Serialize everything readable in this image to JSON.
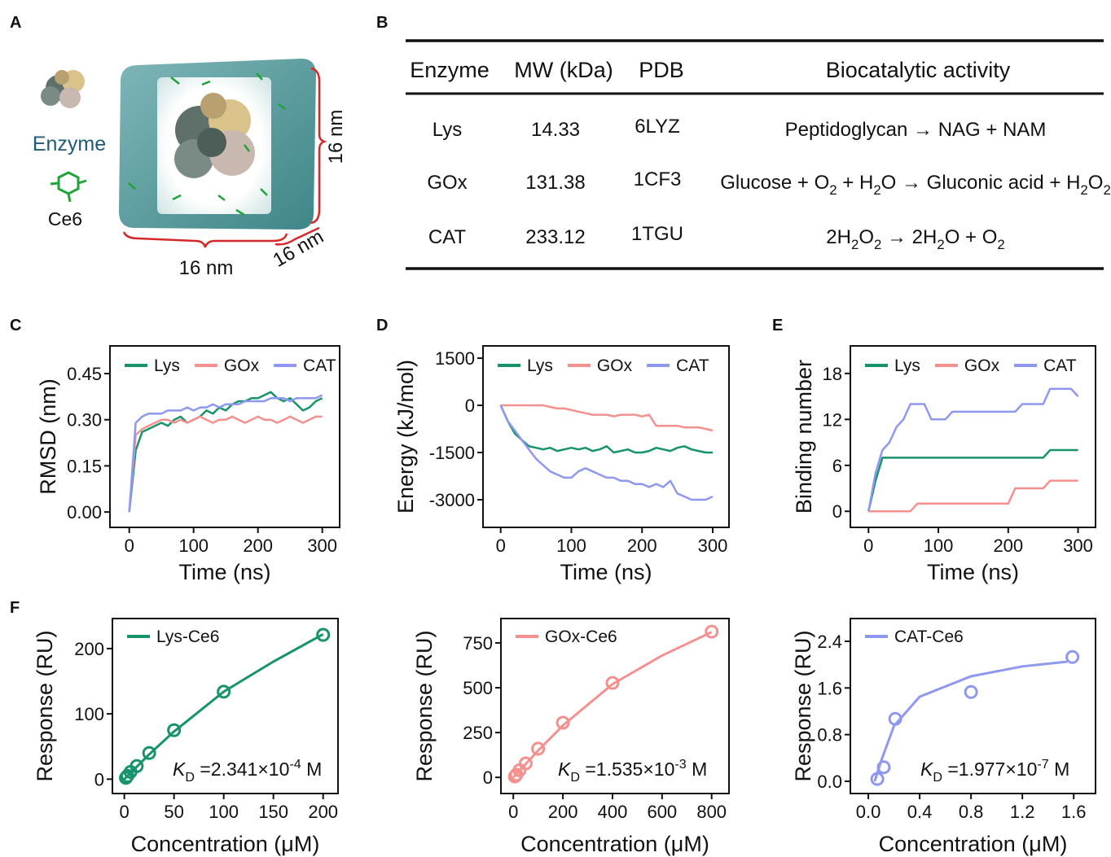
{
  "panel_labels": [
    "A",
    "B",
    "C",
    "D",
    "E",
    "F"
  ],
  "illustration": {
    "enzyme_label": "Enzyme",
    "ce6_label": "Ce6",
    "dims": [
      "16 nm",
      "16 nm",
      "16 nm"
    ]
  },
  "table": {
    "headers": [
      "Enzyme",
      "MW (kDa)",
      "PDB",
      "Biocatalytic activity"
    ],
    "rows": [
      [
        "Lys",
        "14.33",
        "6LYZ",
        [
          "Peptidoglycan → NAG + NAM"
        ]
      ],
      [
        "GOx",
        "131.38",
        "1CF3",
        [
          "Glucose + O",
          {
            "sub": "2"
          },
          " + H",
          {
            "sub": "2"
          },
          "O → Gluconic acid + H",
          {
            "sub": "2"
          },
          "O",
          {
            "sub": "2"
          }
        ]
      ],
      [
        "CAT",
        "233.12",
        "1TGU",
        [
          "2H",
          {
            "sub": "2"
          },
          "O",
          {
            "sub": "2"
          },
          " → 2H",
          {
            "sub": "2"
          },
          "O + O",
          {
            "sub": "2"
          }
        ]
      ]
    ]
  },
  "chart_data": [
    {
      "type": "line",
      "x_label": "Time (ns)",
      "y_label": "RMSD (nm)",
      "xlim": [
        -30,
        327
      ],
      "ylim": [
        -0.05,
        0.54
      ],
      "xticks": [
        0,
        100,
        200,
        300
      ],
      "yticks": [
        {
          "value": 0,
          "label": "0.00"
        },
        0.15,
        {
          "value": 0.3,
          "label": "0.30"
        },
        0.45
      ],
      "x": [
        0,
        10,
        20,
        30,
        40,
        50,
        60,
        70,
        80,
        90,
        100,
        110,
        120,
        130,
        140,
        150,
        160,
        170,
        180,
        190,
        200,
        210,
        220,
        230,
        240,
        250,
        260,
        270,
        280,
        290,
        300
      ],
      "series": [
        {
          "name": "Lys",
          "color": "#17936b",
          "values": [
            0,
            0.2,
            0.26,
            0.27,
            0.28,
            0.29,
            0.28,
            0.3,
            0.31,
            0.29,
            0.3,
            0.31,
            0.33,
            0.32,
            0.34,
            0.33,
            0.35,
            0.36,
            0.36,
            0.37,
            0.37,
            0.38,
            0.39,
            0.37,
            0.36,
            0.37,
            0.35,
            0.33,
            0.34,
            0.36,
            0.37
          ]
        },
        {
          "name": "GOx",
          "color": "#f4918e",
          "values": [
            0,
            0.25,
            0.27,
            0.28,
            0.29,
            0.3,
            0.3,
            0.29,
            0.3,
            0.29,
            0.3,
            0.31,
            0.3,
            0.29,
            0.3,
            0.3,
            0.31,
            0.3,
            0.29,
            0.3,
            0.31,
            0.3,
            0.3,
            0.29,
            0.3,
            0.31,
            0.3,
            0.29,
            0.3,
            0.31,
            0.31
          ]
        },
        {
          "name": "CAT",
          "color": "#8f98ef",
          "values": [
            0,
            0.29,
            0.31,
            0.32,
            0.32,
            0.32,
            0.33,
            0.33,
            0.33,
            0.34,
            0.33,
            0.34,
            0.34,
            0.35,
            0.34,
            0.35,
            0.35,
            0.35,
            0.36,
            0.36,
            0.36,
            0.36,
            0.37,
            0.37,
            0.37,
            0.36,
            0.37,
            0.37,
            0.37,
            0.37,
            0.38
          ]
        }
      ]
    },
    {
      "type": "line",
      "x_label": "Time (ns)",
      "y_label": "Energy (kJ/mol)",
      "xlim": [
        -25,
        323
      ],
      "ylim": [
        -3880,
        1890
      ],
      "xticks": [
        0,
        100,
        200,
        300
      ],
      "yticks": [
        1500,
        0,
        -1500,
        -3000
      ],
      "x": [
        0,
        10,
        20,
        30,
        40,
        50,
        60,
        70,
        80,
        90,
        100,
        110,
        120,
        130,
        140,
        150,
        160,
        170,
        180,
        190,
        200,
        210,
        220,
        230,
        240,
        250,
        260,
        270,
        280,
        290,
        300
      ],
      "series": [
        {
          "name": "Lys",
          "color": "#17936b",
          "values": [
            0,
            -500,
            -900,
            -1100,
            -1300,
            -1350,
            -1400,
            -1350,
            -1450,
            -1400,
            -1350,
            -1400,
            -1350,
            -1450,
            -1400,
            -1300,
            -1500,
            -1450,
            -1400,
            -1500,
            -1500,
            -1450,
            -1350,
            -1400,
            -1450,
            -1350,
            -1300,
            -1400,
            -1450,
            -1500,
            -1500
          ]
        },
        {
          "name": "GOx",
          "color": "#f4918e",
          "values": [
            0,
            0,
            0,
            0,
            0,
            0,
            0,
            -50,
            -100,
            -100,
            -150,
            -200,
            -250,
            -300,
            -300,
            -300,
            -350,
            -300,
            -300,
            -300,
            -350,
            -300,
            -650,
            -650,
            -650,
            -650,
            -700,
            -700,
            -700,
            -750,
            -800
          ]
        },
        {
          "name": "CAT",
          "color": "#8f98ef",
          "values": [
            0,
            -500,
            -800,
            -1100,
            -1400,
            -1700,
            -1900,
            -2100,
            -2200,
            -2300,
            -2300,
            -2100,
            -2000,
            -2100,
            -2200,
            -2300,
            -2300,
            -2400,
            -2400,
            -2500,
            -2500,
            -2600,
            -2500,
            -2600,
            -2400,
            -2800,
            -2900,
            -3000,
            -3000,
            -3000,
            -2900
          ]
        }
      ]
    },
    {
      "type": "line",
      "x_label": "Time (ns)",
      "y_label": "Binding number",
      "xlim": [
        -26,
        325
      ],
      "ylim": [
        -2.1,
        21.6
      ],
      "xticks": [
        0,
        100,
        200,
        300
      ],
      "yticks": [
        0,
        6,
        12,
        18
      ],
      "x": [
        0,
        10,
        20,
        30,
        40,
        50,
        60,
        70,
        80,
        90,
        100,
        110,
        120,
        130,
        140,
        150,
        160,
        170,
        180,
        190,
        200,
        210,
        220,
        230,
        240,
        250,
        260,
        270,
        280,
        290,
        300
      ],
      "series": [
        {
          "name": "Lys",
          "color": "#17936b",
          "values": [
            0,
            4,
            7,
            7,
            7,
            7,
            7,
            7,
            7,
            7,
            7,
            7,
            7,
            7,
            7,
            7,
            7,
            7,
            7,
            7,
            7,
            7,
            7,
            7,
            7,
            7,
            8,
            8,
            8,
            8,
            8
          ]
        },
        {
          "name": "GOx",
          "color": "#f4918e",
          "values": [
            0,
            0,
            0,
            0,
            0,
            0,
            0,
            1,
            1,
            1,
            1,
            1,
            1,
            1,
            1,
            1,
            1,
            1,
            1,
            1,
            1,
            3,
            3,
            3,
            3,
            3,
            4,
            4,
            4,
            4,
            4
          ]
        },
        {
          "name": "CAT",
          "color": "#8f98ef",
          "values": [
            0,
            5,
            8,
            9,
            11,
            12,
            14,
            14,
            14,
            12,
            12,
            12,
            13,
            13,
            13,
            13,
            13,
            13,
            13,
            13,
            13,
            13,
            14,
            14,
            14,
            14,
            16,
            16,
            16,
            16,
            15
          ]
        }
      ]
    },
    {
      "type": "scatter",
      "x_label": "Concentration (μM)",
      "y_label": "Response (RU)",
      "xlim": [
        -12,
        215
      ],
      "ylim": [
        -22,
        246
      ],
      "xticks": [
        0,
        50,
        100,
        150,
        200
      ],
      "yticks": [
        0,
        100,
        200
      ],
      "annotation": [
        "K",
        {
          "sub": "D"
        },
        " =2.341×10",
        {
          "sup": "-4"
        },
        " M"
      ],
      "series": [
        {
          "name": "Lys-Ce6",
          "color": "#17936b",
          "x": [
            1.5625,
            3.125,
            6.25,
            12.5,
            25,
            50,
            100,
            200
          ],
          "values": [
            2,
            5,
            11,
            20,
            40,
            75,
            134,
            221
          ],
          "fit": {
            "x": [
              0,
              25,
              50,
              100,
              150,
              200
            ],
            "values": [
              0,
              38,
              73,
              134,
              180,
              222
            ]
          }
        }
      ]
    },
    {
      "type": "scatter",
      "x_label": "Concentration (μM)",
      "y_label": "Response (RU)",
      "xlim": [
        -50,
        870
      ],
      "ylim": [
        -90,
        886
      ],
      "xticks": [
        0,
        200,
        400,
        600,
        800
      ],
      "yticks": [
        0,
        250,
        500,
        750
      ],
      "annotation": [
        "K",
        {
          "sub": "D"
        },
        " =1.535×10",
        {
          "sup": "-3"
        },
        " M"
      ],
      "series": [
        {
          "name": "GOx-Ce6",
          "color": "#f4918e",
          "x": [
            6.25,
            12.5,
            25,
            50,
            100,
            200,
            400,
            800
          ],
          "values": [
            5,
            15,
            40,
            78,
            160,
            305,
            527,
            813
          ],
          "fit": {
            "x": [
              0,
              100,
              200,
              400,
              600,
              800
            ],
            "values": [
              0,
              150,
              290,
              520,
              680,
              810
            ]
          }
        }
      ]
    },
    {
      "type": "scatter",
      "x_label": "Concentration (μM)",
      "y_label": "Response (RU)",
      "xlim": [
        -0.14,
        1.77
      ],
      "ylim": [
        -0.21,
        2.79
      ],
      "xticks": [
        {
          "value": 0,
          "label": "0.0"
        },
        0.4,
        0.8,
        1.2,
        1.6
      ],
      "yticks": [
        {
          "value": 0,
          "label": "0.0"
        },
        0.8,
        1.6,
        2.4
      ],
      "annotation": [
        "K",
        {
          "sub": "D"
        },
        " =1.977×10",
        {
          "sup": "-7"
        },
        " M"
      ],
      "series": [
        {
          "name": "CAT-Ce6",
          "color": "#8f98ef",
          "x": [
            0.07,
            0.12,
            0.21,
            0.8,
            1.59
          ],
          "values": [
            0.04,
            0.24,
            1.07,
            1.53,
            2.13
          ],
          "fit": {
            "x": [
              0.05,
              0.1,
              0.2,
              0.4,
              0.8,
              1.2,
              1.55
            ],
            "values": [
              0,
              0.35,
              0.95,
              1.45,
              1.8,
              1.97,
              2.05
            ]
          }
        }
      ]
    }
  ]
}
